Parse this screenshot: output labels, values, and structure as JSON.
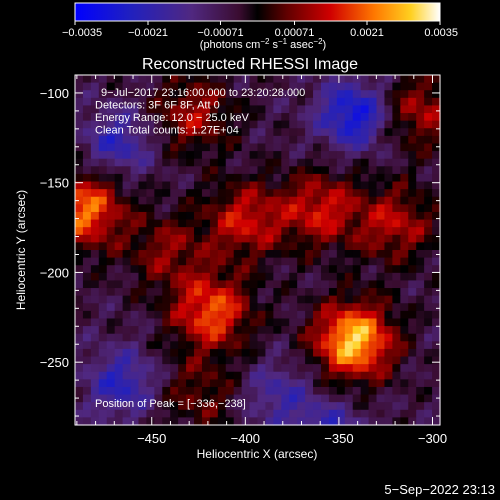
{
  "chart_data": {
    "type": "heatmap",
    "title": "Reconstructed RHESSI Image",
    "xlabel": "Heliocentric X (arcsec)",
    "ylabel": "Heliocentric Y (arcsec)",
    "xlim": [
      -491,
      -296
    ],
    "ylim": [
      -285,
      -90
    ],
    "xticks": [
      -450,
      -400,
      -350,
      -300
    ],
    "xtick_labels": [
      "−450",
      "−400",
      "−350",
      "−300"
    ],
    "yticks": [
      -100,
      -150,
      -200,
      -250
    ],
    "ytick_labels": [
      "−100",
      "−150",
      "−200",
      "−250"
    ],
    "colorbar": {
      "range": [
        -0.0035,
        0.0035
      ],
      "ticks": [
        -0.0035,
        -0.0021,
        -0.00071,
        0.00071,
        0.0021,
        0.0035
      ],
      "tick_labels": [
        "−0.0035",
        "−0.0021",
        "−0.00071",
        "0.00071",
        "0.0021",
        "0.0035"
      ],
      "units_text": "(photons cm",
      "units_exp1": "−2",
      "units_mid": " s",
      "units_exp2": "−1",
      "units_mid2": " asec",
      "units_exp3": "−2",
      "units_close": ")"
    },
    "annotations": [
      "9−Jul−2017 23:16:00.000 to 23:20:28.000",
      "Detectors: 3F 6F 8F, Att 0",
      "Energy Range: 12.0 − 25.0 keV",
      "Clean     Total counts: 1.27E+04"
    ],
    "peak_label": "Position of Peak = [−336,−238]",
    "peak": [
      -336,
      -238
    ],
    "sources": [
      {
        "x": -342,
        "y": -238,
        "amplitude": 0.0035
      },
      {
        "x": -486,
        "y": -165,
        "amplitude": 0.0027
      },
      {
        "x": -418,
        "y": -222,
        "amplitude": 0.0025
      },
      {
        "x": -400,
        "y": -171,
        "amplitude": 0.0019
      },
      {
        "x": -360,
        "y": -165,
        "amplitude": 0.0019
      },
      {
        "x": -320,
        "y": -173,
        "amplitude": 0.0017
      },
      {
        "x": -428,
        "y": -112,
        "amplitude": 0.0016
      },
      {
        "x": -442,
        "y": -188,
        "amplitude": 0.0013
      },
      {
        "x": -425,
        "y": -268,
        "amplitude": 0.0011
      },
      {
        "x": -306,
        "y": -110,
        "amplitude": 0.0016
      }
    ],
    "negative_regions": [
      {
        "x": -342,
        "y": -112,
        "amplitude": -0.0024
      },
      {
        "x": -356,
        "y": -292,
        "amplitude": -0.0017
      },
      {
        "x": -468,
        "y": -128,
        "amplitude": -0.0016
      },
      {
        "x": -466,
        "y": -262,
        "amplitude": -0.0017
      },
      {
        "x": -382,
        "y": -268,
        "amplitude": -0.0012
      }
    ]
  },
  "footer": {
    "timestamp": "5−Sep−2022 23:13"
  }
}
